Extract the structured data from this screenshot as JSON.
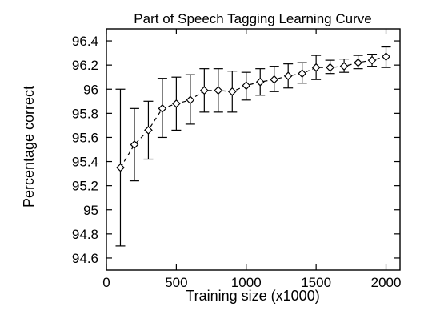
{
  "chart_data": {
    "type": "line",
    "title": "Part of Speech Tagging Learning Curve",
    "xlabel": "Training size (x1000)",
    "ylabel": "Percentage correct",
    "xlim": [
      0,
      2100
    ],
    "ylim": [
      94.5,
      96.5
    ],
    "xticks": [
      0,
      500,
      1000,
      1500,
      2000
    ],
    "yticks": [
      94.6,
      94.8,
      95,
      95.2,
      95.4,
      95.6,
      95.8,
      96,
      96.2,
      96.4
    ],
    "xtick_labels": [
      "0",
      "500",
      "1000",
      "1500",
      "2000"
    ],
    "ytick_labels": [
      "94.6",
      "94.8",
      "95",
      "95.2",
      "95.4",
      "95.6",
      "95.8",
      "96",
      "96.2",
      "96.4"
    ],
    "grid": false,
    "legend": "none",
    "marker": "diamond",
    "line_style": "dashed",
    "series": [
      {
        "x": [
          100,
          200,
          300,
          400,
          500,
          600,
          700,
          800,
          900,
          1000,
          1100,
          1200,
          1300,
          1400,
          1500,
          1600,
          1700,
          1800,
          1900,
          2000
        ],
        "y": [
          95.35,
          95.54,
          95.66,
          95.84,
          95.88,
          95.91,
          95.99,
          95.99,
          95.98,
          96.03,
          96.06,
          96.08,
          96.11,
          96.13,
          96.18,
          96.18,
          96.19,
          96.22,
          96.24,
          96.27
        ],
        "error_low": [
          94.7,
          95.24,
          95.42,
          95.6,
          95.66,
          95.71,
          95.81,
          95.81,
          95.81,
          95.91,
          95.95,
          95.98,
          96.01,
          96.05,
          96.08,
          96.13,
          96.14,
          96.17,
          96.19,
          96.18
        ],
        "error_high": [
          96.0,
          95.84,
          95.9,
          96.09,
          96.1,
          96.12,
          96.17,
          96.17,
          96.15,
          96.14,
          96.17,
          96.19,
          96.21,
          96.22,
          96.28,
          96.24,
          96.25,
          96.28,
          96.29,
          96.35
        ]
      }
    ]
  }
}
